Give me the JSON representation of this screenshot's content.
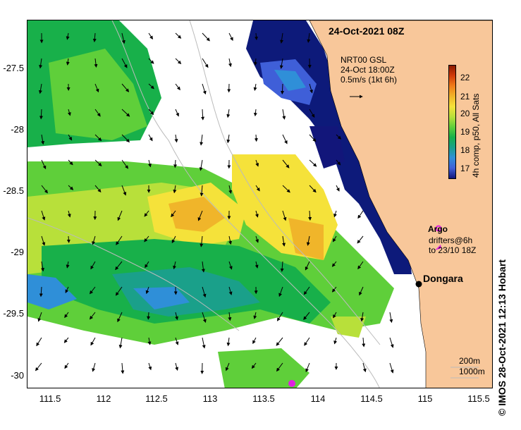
{
  "title": "24-Oct-2021 08Z",
  "annotation": {
    "line1": "NRT00 GSL",
    "line2": "24-Oct 18:00Z",
    "line3": "0.5m/s (1kt 6h)"
  },
  "colorbar": {
    "label": "4h comp, p50, All Sats",
    "ticks": [
      "22",
      "21",
      "20",
      "19",
      "18",
      "17"
    ],
    "colors": [
      "#8b1a00",
      "#d23b0a",
      "#f07d1a",
      "#f0b52a",
      "#f5e23a",
      "#b8e03a",
      "#5fcf3a",
      "#18b04a",
      "#1aa08a",
      "#2f8fd8",
      "#3f5fd8",
      "#12167a"
    ]
  },
  "legend": {
    "argo_label": "Argo",
    "drifters_line1": "drifters@6h",
    "drifters_line2": "to 23/10 18Z"
  },
  "place": {
    "name": "Dongara"
  },
  "contours": {
    "line1": "200m",
    "line2": "1000m"
  },
  "axes": {
    "x_ticks": [
      "111.5",
      "112",
      "112.5",
      "113",
      "113.5",
      "114",
      "114.5",
      "115",
      "115.5"
    ],
    "y_ticks": [
      "-27.5",
      "-28",
      "-28.5",
      "-29",
      "-29.5",
      "-30"
    ]
  },
  "credit": "© IMOS 28-Oct-2021 12:13 Hobart",
  "map_colors": {
    "land": "#f8c79a",
    "cold": "#0d1a7a",
    "warm": "#f2b23a"
  }
}
